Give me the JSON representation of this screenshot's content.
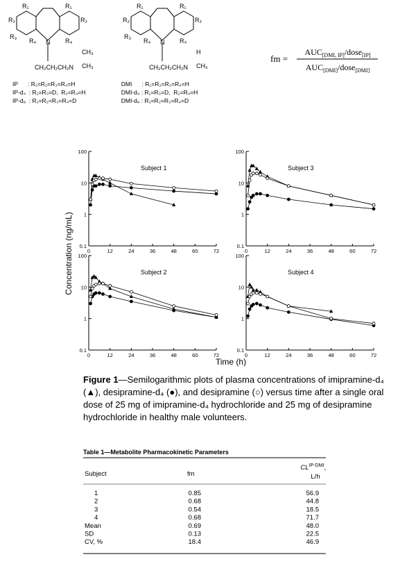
{
  "structures": [
    {
      "labels": [
        "R₁",
        "R₁",
        "R₂",
        "R₂",
        "R₃",
        "R₄",
        "R₄",
        "N",
        "CH₂CH₂CH₂N",
        "CH₃",
        "CH₃"
      ],
      "legend": [
        "IP      : R₁=R₂=R₃=R₄=H",
        "IP-d₄  : R₁=R₃=D,  R₂=R₄=H",
        "IP-d₈  : R₁=R₂=R₃=R₄=D"
      ]
    },
    {
      "labels": [
        "R₁",
        "R₁",
        "R₂",
        "R₂",
        "R₃",
        "R₄",
        "R₄",
        "N",
        "CH₂CH₂CH₂N",
        "H",
        "CH₃"
      ],
      "legend": [
        "DMI      : R₁=R₂=R₃=R₄=H",
        "DMI-d₄ : R₁=R₃=D,  R₂=R₄=H",
        "DMI-d₈ : R₁=R₂=R₃=R₄=D"
      ]
    }
  ],
  "formula": {
    "lhs": "fm =",
    "numerator": [
      "AUC",
      "[DMI, IP]",
      "/dose",
      "[IP]"
    ],
    "denominator": [
      "AUC",
      "[DMI]",
      "/dose",
      "[DMI]"
    ]
  },
  "figure": {
    "ylabel": "Concentration (ng/mL)",
    "xlabel": "Time (h)",
    "caption_label": "Figure 1",
    "caption": "—Semilogarithmic plots of plasma concentrations of imipramine-d₄ (▲), desipramine-d₄ (●), and desipramine (○) versus time after a single oral dose of 25 mg of imipramine-d₄ hydrochloride and 25 mg of desipramine hydrochloride in healthy male volunteers."
  },
  "chart_data": [
    {
      "type": "line",
      "title": "Subject 1",
      "log_y": true,
      "x": [
        1,
        2,
        3,
        4,
        6,
        8,
        12,
        24,
        48,
        72
      ],
      "xlim": [
        0,
        72
      ],
      "xticks": [
        0,
        12,
        24,
        36,
        48,
        60,
        72
      ],
      "ylim": [
        0.1,
        100
      ],
      "yticks": [
        0.1,
        1,
        10,
        100
      ],
      "series": [
        {
          "marker": "triangle",
          "color": "#000",
          "values": [
            3,
            13,
            17,
            17,
            15,
            13,
            10,
            4.5,
            2,
            null
          ]
        },
        {
          "marker": "filled-circle",
          "color": "#000",
          "values": [
            2,
            6,
            8,
            8,
            9,
            9,
            8,
            7,
            5.5,
            4.5
          ]
        },
        {
          "marker": "open-circle",
          "color": "#000",
          "values": [
            3,
            9,
            12,
            13,
            14,
            14,
            13,
            9.5,
            7,
            5.5
          ]
        }
      ]
    },
    {
      "type": "line",
      "title": "Subject 3",
      "log_y": true,
      "x": [
        1,
        2,
        3,
        4,
        6,
        8,
        12,
        24,
        48,
        72
      ],
      "xlim": [
        0,
        72
      ],
      "xticks": [
        0,
        12,
        24,
        36,
        48,
        60,
        72
      ],
      "ylim": [
        0.1,
        100
      ],
      "yticks": [
        0.1,
        1,
        10,
        100
      ],
      "series": [
        {
          "marker": "triangle",
          "color": "#000",
          "values": [
            8,
            25,
            35,
            35,
            28,
            22,
            16,
            8,
            4,
            2
          ]
        },
        {
          "marker": "filled-circle",
          "color": "#000",
          "values": [
            1.5,
            2.5,
            3.5,
            4,
            4.5,
            4.5,
            4,
            3,
            2,
            1.5
          ]
        },
        {
          "marker": "open-circle",
          "color": "#000",
          "values": [
            4,
            12,
            18,
            20,
            20,
            18,
            14,
            8,
            4,
            2
          ]
        }
      ]
    },
    {
      "type": "line",
      "title": "Subject 2",
      "log_y": true,
      "x": [
        1,
        2,
        3,
        4,
        6,
        8,
        12,
        24,
        48,
        72
      ],
      "xlim": [
        0,
        72
      ],
      "xticks": [
        0,
        12,
        24,
        36,
        48,
        60,
        72
      ],
      "ylim": [
        0.1,
        100
      ],
      "yticks": [
        0.1,
        1,
        10,
        100
      ],
      "series": [
        {
          "marker": "triangle",
          "color": "#000",
          "values": [
            8,
            20,
            22,
            20,
            15,
            13,
            9,
            5,
            2,
            1.1
          ]
        },
        {
          "marker": "filled-circle",
          "color": "#000",
          "values": [
            3,
            5,
            6,
            6.5,
            6.5,
            6,
            5,
            3.5,
            1.8,
            1.1
          ]
        },
        {
          "marker": "open-circle",
          "color": "#000",
          "values": [
            5,
            9,
            11,
            12,
            13,
            13,
            11,
            7,
            2.5,
            1.3
          ]
        }
      ]
    },
    {
      "type": "line",
      "title": "Subject 4",
      "log_y": true,
      "x": [
        1,
        2,
        3,
        4,
        6,
        8,
        12,
        24,
        48,
        72
      ],
      "xlim": [
        0,
        72
      ],
      "xticks": [
        0,
        12,
        24,
        36,
        48,
        60,
        72
      ],
      "ylim": [
        0.1,
        100
      ],
      "yticks": [
        0.1,
        1,
        10,
        100
      ],
      "series": [
        {
          "marker": "triangle",
          "color": "#000",
          "values": [
            5,
            12,
            10,
            8,
            8,
            7,
            5,
            2.5,
            1.7,
            null
          ]
        },
        {
          "marker": "filled-circle",
          "color": "#000",
          "values": [
            1.2,
            2,
            2.5,
            2.8,
            3,
            2.7,
            2.2,
            1.6,
            0.95,
            0.6
          ]
        },
        {
          "marker": "open-circle",
          "color": "#000",
          "values": [
            3,
            5,
            6,
            6.5,
            6.5,
            6,
            5,
            2.5,
            1,
            0.7
          ]
        }
      ]
    }
  ],
  "table": {
    "title": "Table 1—Metabolite Pharmacokinetic Parameters",
    "header": [
      "Subject",
      "fm",
      "CL",
      "IP-DMI",
      ",",
      "L/h"
    ],
    "rows": [
      [
        "1",
        "0.85",
        "56.9"
      ],
      [
        "2",
        "0.68",
        "44.8"
      ],
      [
        "3",
        "0.54",
        "18.5"
      ],
      [
        "4",
        "0.68",
        "71.7"
      ],
      [
        "Mean",
        "0.69",
        "48.0"
      ],
      [
        "SD",
        "0.13",
        "22.5"
      ],
      [
        "CV, %",
        "18.4",
        "46.9"
      ]
    ]
  }
}
